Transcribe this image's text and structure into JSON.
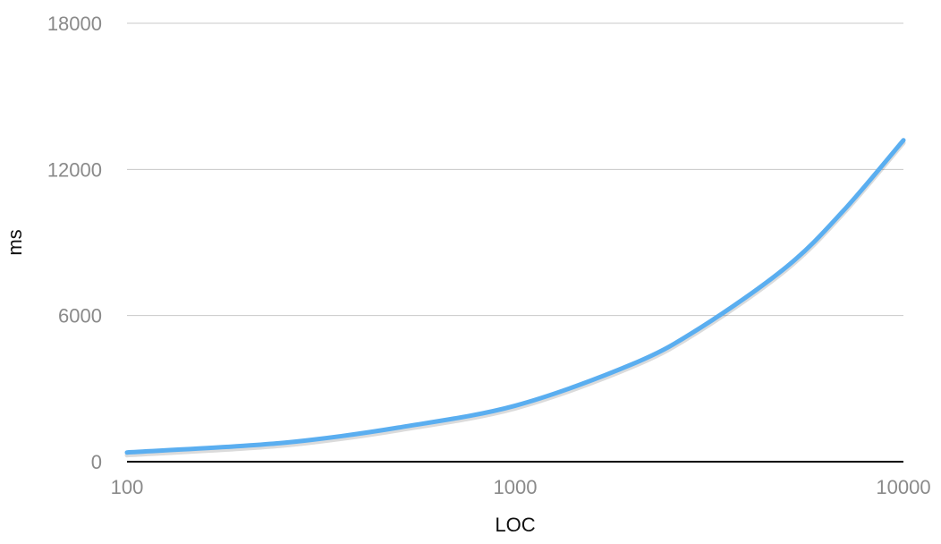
{
  "chart_data": {
    "type": "line",
    "title": "",
    "xlabel": "LOC",
    "ylabel": "ms",
    "x_scale": "log",
    "xlim": [
      100,
      10000
    ],
    "ylim": [
      0,
      18000
    ],
    "x_ticks": [
      "100",
      "1000",
      "10000"
    ],
    "y_ticks": [
      "0",
      "6000",
      "12000",
      "18000"
    ],
    "grid": true,
    "legend": "none",
    "series": [
      {
        "color": "#5aaef0",
        "x": [
          100,
          200,
          300,
          500,
          1000,
          2000,
          3000,
          5000,
          7000,
          10000
        ],
        "y": [
          380,
          650,
          900,
          1400,
          2300,
          4000,
          5500,
          8000,
          10300,
          13200
        ]
      }
    ]
  }
}
